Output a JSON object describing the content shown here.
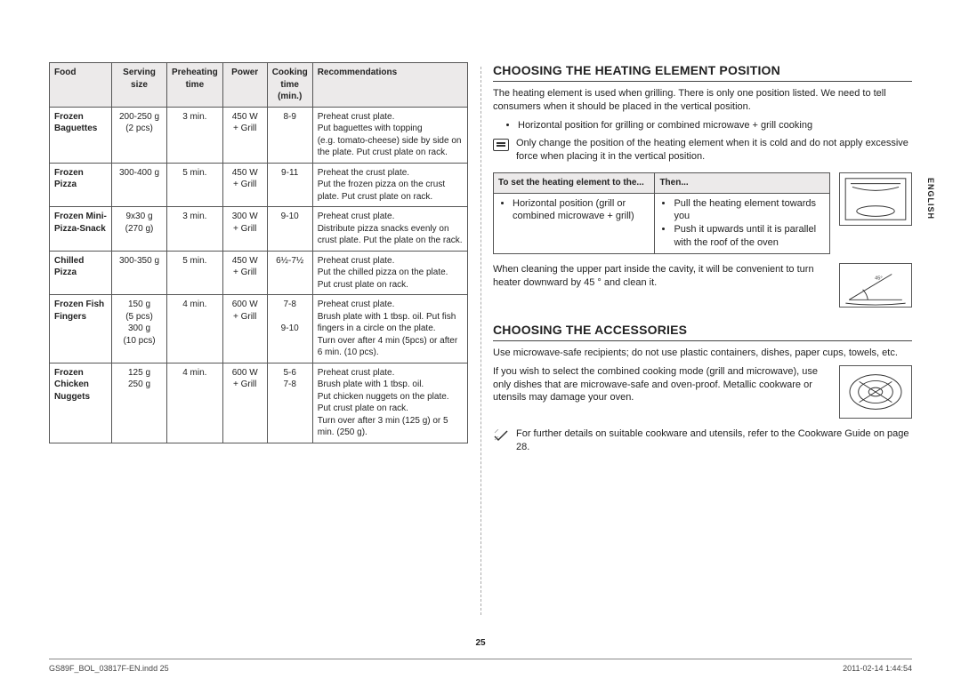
{
  "pageNumber": "25",
  "language": "ENGLISH",
  "footerLeft": "GS89F_BOL_03817F-EN.indd   25",
  "footerRight": "2011-02-14    1:44:54",
  "table": {
    "headers": [
      "Food",
      "Serving size",
      "Preheating time",
      "Power",
      "Cooking time (min.)",
      "Recommendations"
    ],
    "rows": [
      {
        "food": "Frozen Baguettes",
        "serving": "200-250 g\n(2 pcs)",
        "pre": "3 min.",
        "power": "450 W\n+ Grill",
        "time": "8-9",
        "rec": "Preheat crust plate.\nPut baguettes with topping\n(e.g. tomato-cheese) side by side on the plate. Put crust plate on rack."
      },
      {
        "food": "Frozen Pizza",
        "serving": "300-400 g",
        "pre": "5 min.",
        "power": "450 W\n+ Grill",
        "time": "9-11",
        "rec": "Preheat the crust plate.\nPut the frozen pizza on the crust plate. Put crust plate on rack."
      },
      {
        "food": "Frozen Mini-Pizza-Snack",
        "serving": "9x30 g\n(270 g)",
        "pre": "3 min.",
        "power": "300 W\n+ Grill",
        "time": "9-10",
        "rec": "Preheat crust plate.\nDistribute pizza snacks evenly on crust plate. Put the plate on the rack."
      },
      {
        "food": "Chilled Pizza",
        "serving": "300-350 g",
        "pre": "5 min.",
        "power": "450 W\n+ Grill",
        "time": "6½-7½",
        "rec": "Preheat crust plate.\nPut the chilled pizza on the plate.\nPut crust plate on rack."
      },
      {
        "food": "Frozen Fish Fingers",
        "serving": "150 g\n(5 pcs)\n300 g\n(10 pcs)",
        "pre": "4 min.",
        "power": "600 W\n+ Grill",
        "time": "7-8\n\n9-10",
        "rec": "Preheat crust plate.\nBrush plate with 1 tbsp. oil. Put fish fingers in a circle on the plate.\nTurn over after 4 min (5pcs) or after 6 min. (10 pcs)."
      },
      {
        "food": "Frozen Chicken Nuggets",
        "serving": "125 g\n250 g",
        "pre": "4 min.",
        "power": "600 W\n+ Grill",
        "time": "5-6\n7-8",
        "rec": "Preheat crust plate.\nBrush plate with 1 tbsp. oil.\nPut chicken nuggets on the plate.\nPut crust plate on rack.\nTurn over after 3 min (125 g) or 5 min. (250 g)."
      }
    ]
  },
  "right": {
    "h1": "CHOOSING THE HEATING ELEMENT POSITION",
    "p1": "The heating element is used when grilling. There is only one position listed. We need to tell consumers when it should be placed in the vertical position.",
    "bullet1": "Horizontal position for grilling or combined microwave + grill cooking",
    "note1": "Only change the position of the heating element when it is cold and do not apply excessive force when placing it in the vertical position.",
    "smallTable": {
      "h1": "To set the heating element to the...",
      "h2": "Then...",
      "c1": "Horizontal position (grill or combined microwave + grill)",
      "c2a": "Pull the heating element towards you",
      "c2b": "Push it upwards until it is parallel with the roof of the oven"
    },
    "p2": "When cleaning the upper part inside the cavity, it will be convenient to turn heater downward by 45 ° and clean it.",
    "h2sec": "CHOOSING THE ACCESSORIES",
    "p3": "Use microwave-safe recipients; do not use plastic containers, dishes, paper cups, towels, etc.",
    "p4": "If you wish to select the combined cooking mode (grill and microwave), use only dishes that are microwave-safe and oven-proof. Metallic cookware or utensils may damage your oven.",
    "note2": "For further details on suitable cookware and utensils, refer to the Cookware Guide on page 28."
  }
}
